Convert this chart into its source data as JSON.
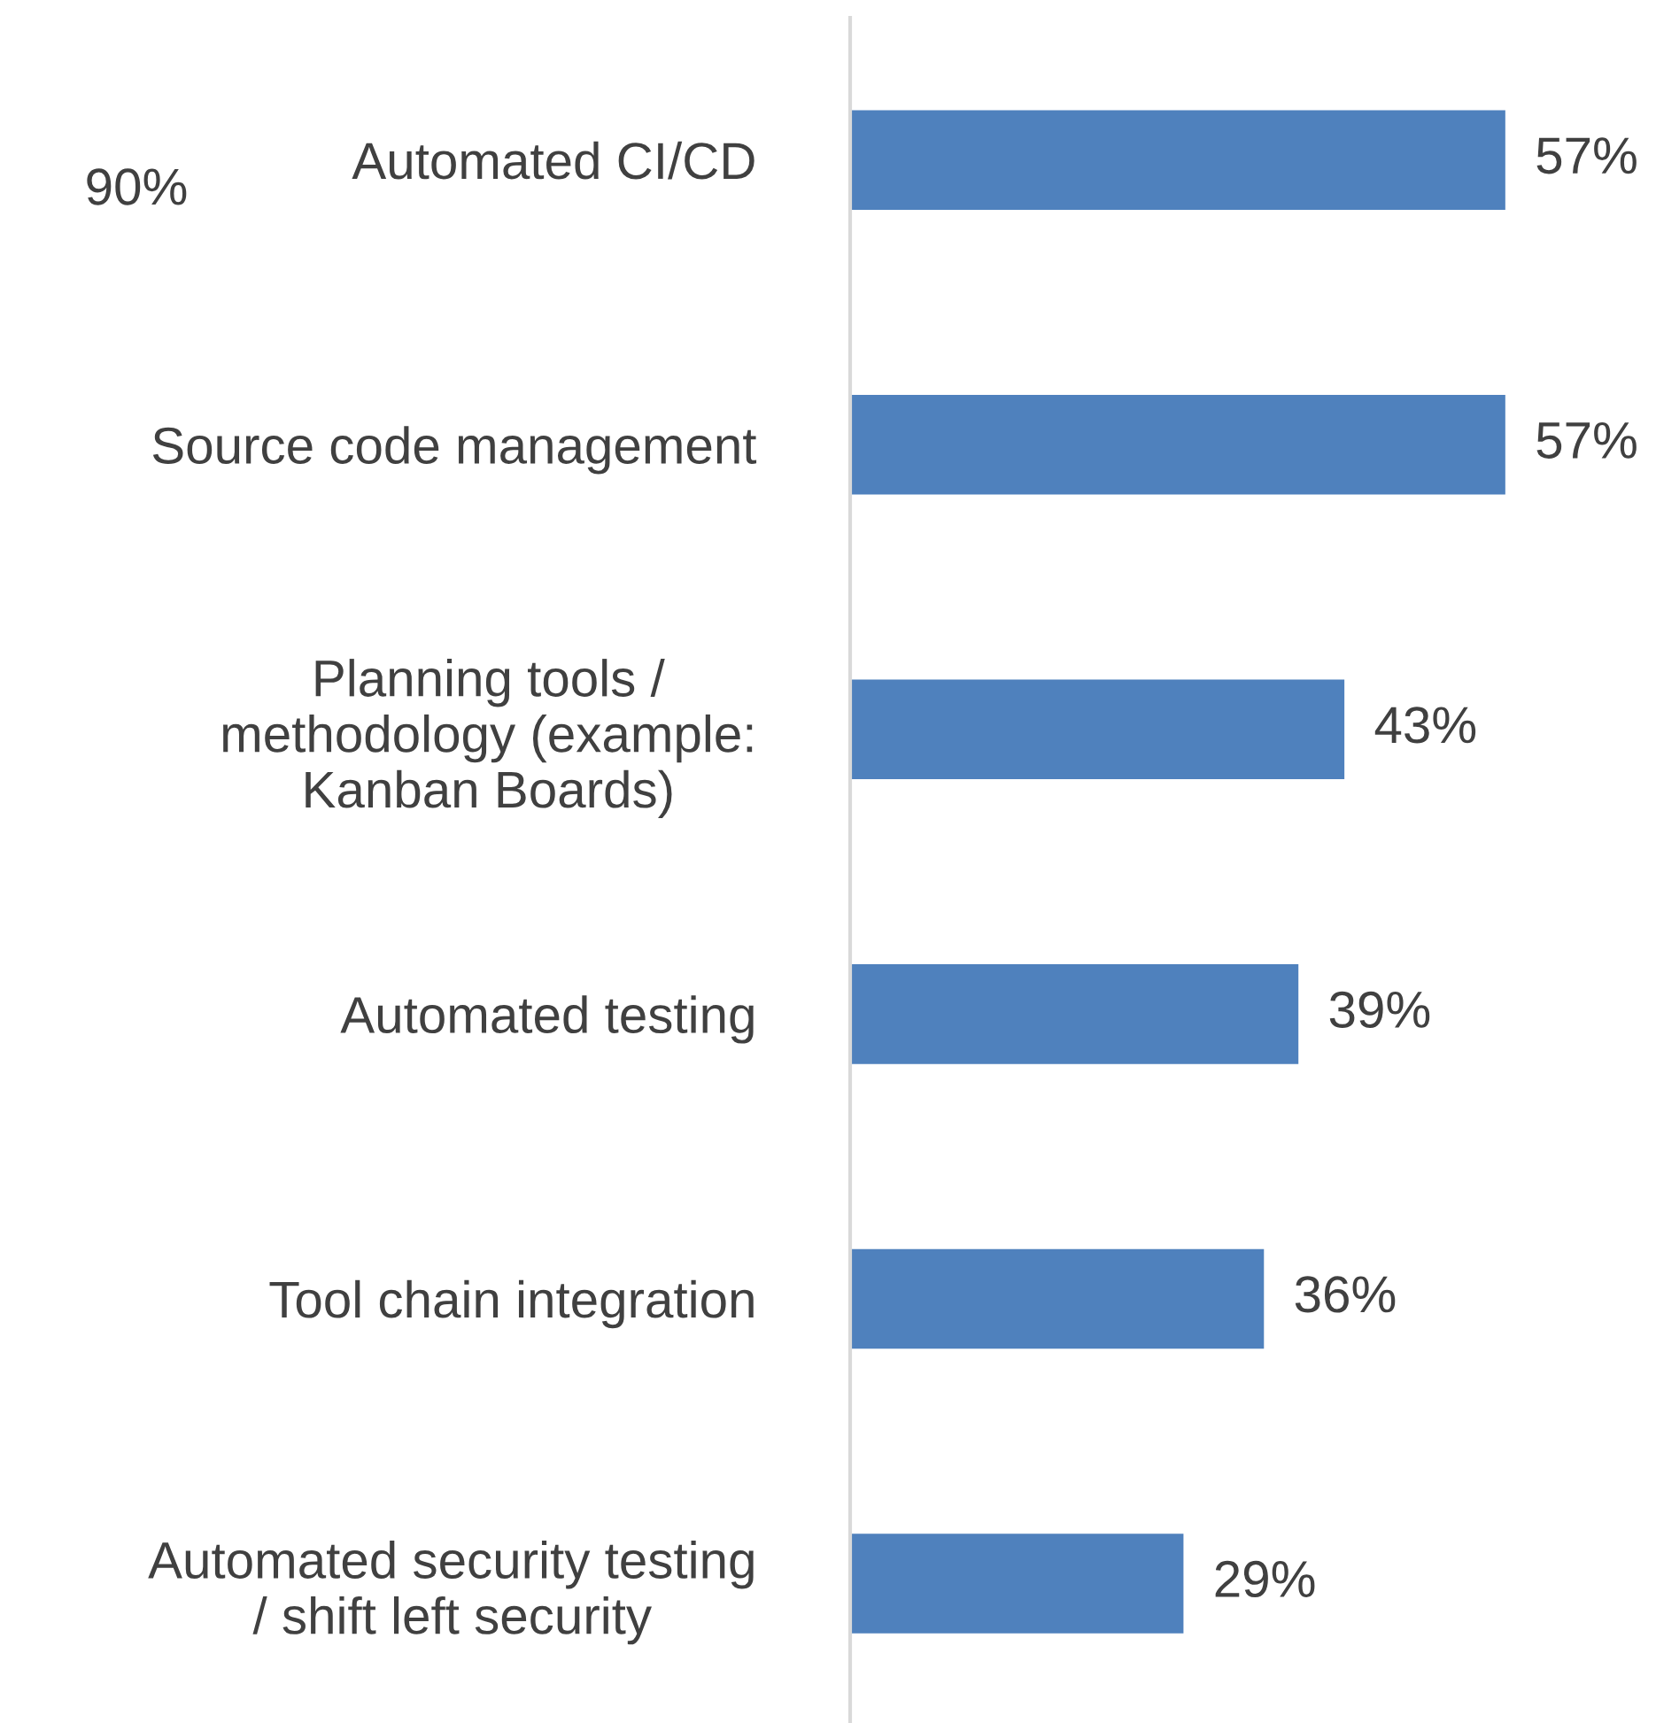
{
  "chart_data": {
    "type": "bar",
    "orientation": "horizontal",
    "categories": [
      "Automated CI/CD",
      "Source code management",
      "Planning tools /\nmethodology (example:\nKanban Boards)",
      "Automated testing",
      "Tool chain integration",
      "Automated security testing\n/ shift left security"
    ],
    "values": [
      57,
      57,
      43,
      39,
      36,
      29
    ],
    "value_labels": [
      "57%",
      "57%",
      "43%",
      "39%",
      "36%",
      "29%"
    ],
    "color": "#4f81bd",
    "tick_labels": "y",
    "grid": false,
    "legend": false,
    "annotations": [
      "90%"
    ]
  }
}
